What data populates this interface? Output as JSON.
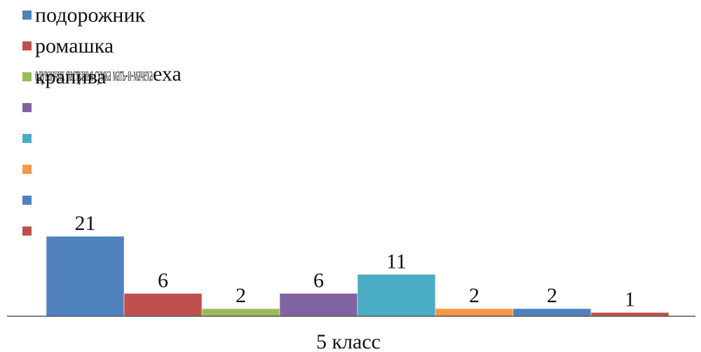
{
  "chart_data": {
    "type": "bar",
    "categories": [
      "5 класс"
    ],
    "xlabel": "",
    "ylabel": "",
    "grid": false,
    "legend_position": "top-left",
    "series": [
      {
        "name": "подорожник",
        "values": [
          21
        ],
        "color": "#4F81BD"
      },
      {
        "name": "ромашка",
        "values": [
          6
        ],
        "color": "#C0504D"
      },
      {
        "name": "крапива",
        "values": [
          2
        ],
        "color": "#9BBB59"
      },
      {
        "name": "",
        "values": [
          6
        ],
        "color": "#8064A2"
      },
      {
        "name": "",
        "values": [
          11
        ],
        "color": "#4BACC6"
      },
      {
        "name": "",
        "values": [
          2
        ],
        "color": "#F79646"
      },
      {
        "name": "",
        "values": [
          2
        ],
        "color": "#4F81BD"
      },
      {
        "name": "",
        "values": [
          1
        ],
        "color": "#C0504D"
      }
    ],
    "legend_overlap_text": "одуванчик пастушья сумка мать-и-мачеха",
    "legend_tail_text": "еха"
  }
}
